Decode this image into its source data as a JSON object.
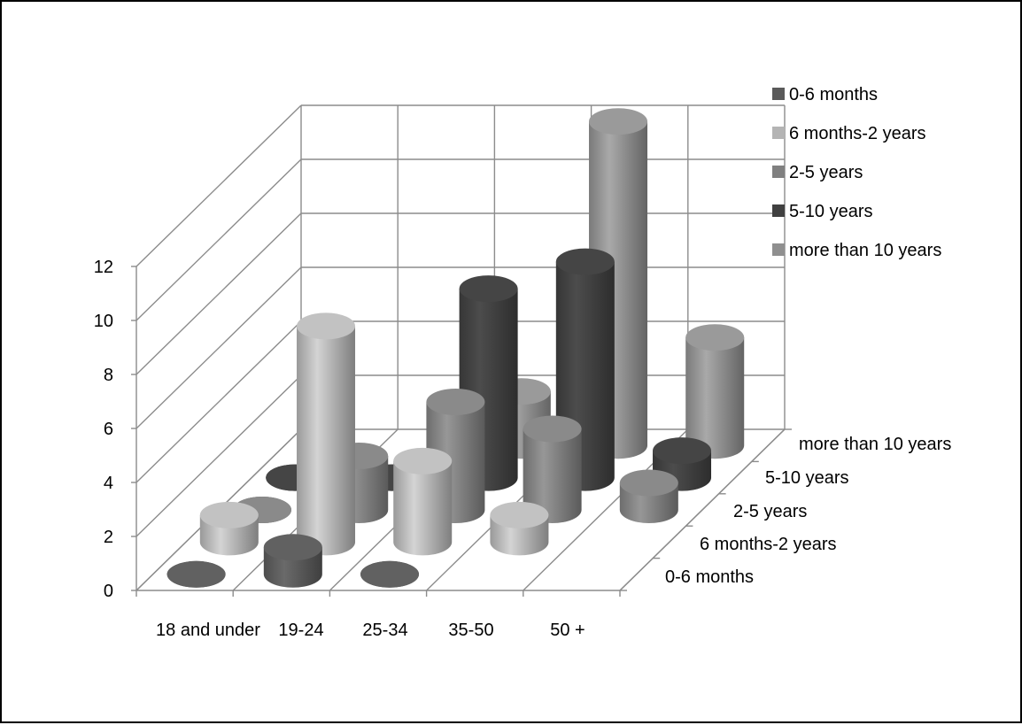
{
  "chart_data": {
    "type": "bar",
    "subtype": "3d-cylinder",
    "title": "",
    "xlabel": "",
    "ylabel": "",
    "categories": [
      "18 and under",
      "19-24",
      "25-34",
      "35-50",
      "50 +"
    ],
    "ylim": [
      0,
      12
    ],
    "y_ticks": [
      "0",
      "2",
      "4",
      "6",
      "8",
      "10",
      "12"
    ],
    "grid": true,
    "legend_position": "right",
    "series": [
      {
        "name": "0-6 months",
        "color": "#5a5a5a",
        "values": [
          0,
          1,
          0,
          null,
          null
        ]
      },
      {
        "name": "6 months-2 years",
        "color": "#b4b4b4",
        "values": [
          1,
          8,
          3,
          1,
          null
        ]
      },
      {
        "name": "2-5 years",
        "color": "#808080",
        "values": [
          0,
          2,
          4,
          3,
          1
        ]
      },
      {
        "name": "5-10 years",
        "color": "#404040",
        "values": [
          0,
          0,
          7,
          8,
          1
        ]
      },
      {
        "name": "more than 10 years",
        "color": "#8f8f8f",
        "values": [
          null,
          null,
          2,
          12,
          4
        ]
      }
    ]
  }
}
